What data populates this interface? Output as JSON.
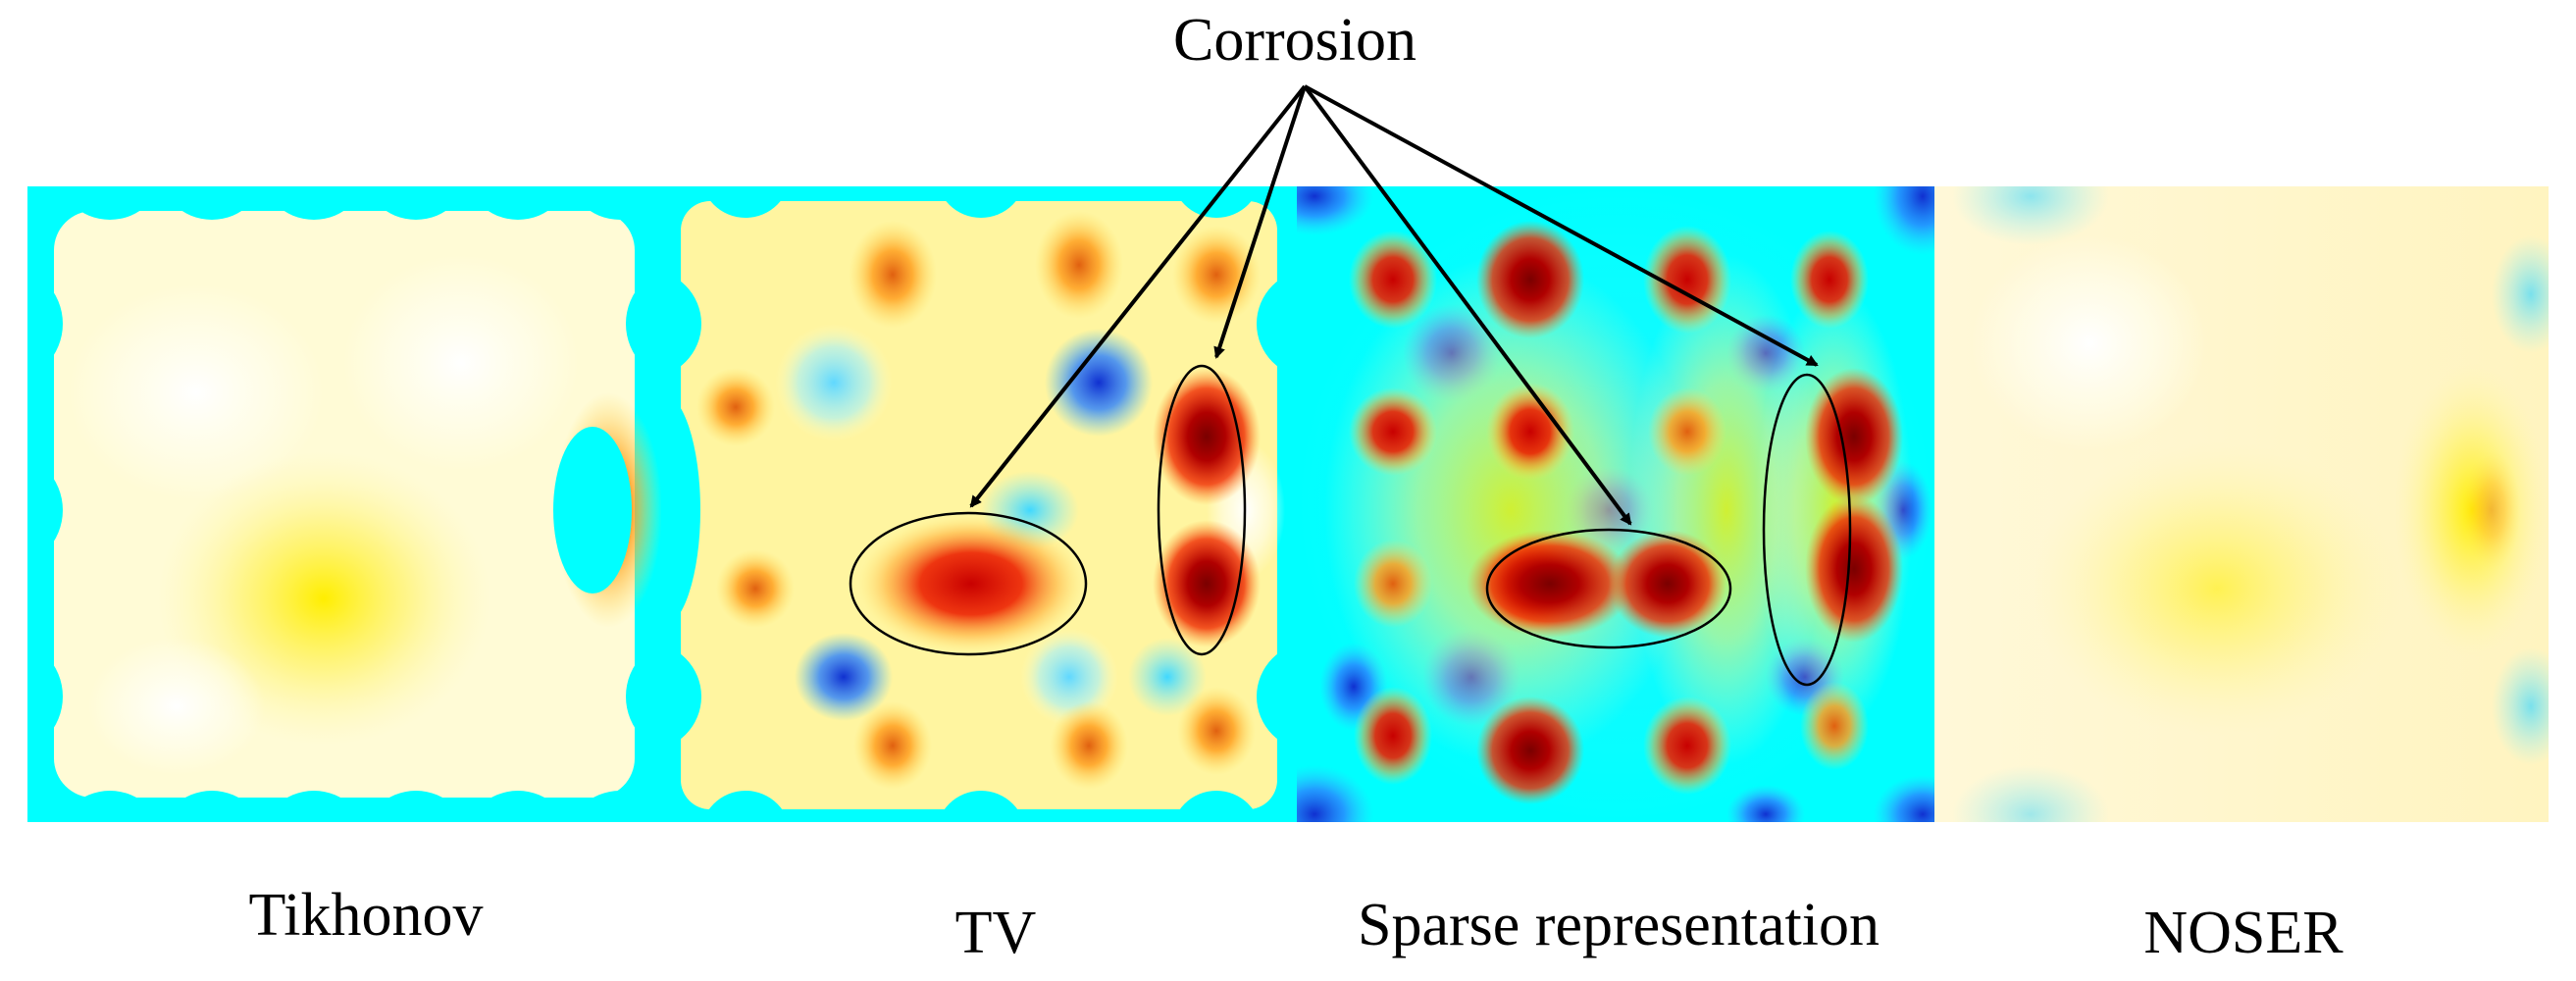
{
  "annotation": {
    "label": "Corrosion"
  },
  "panels": [
    {
      "id": "tikhonov",
      "caption": "Tikhonov"
    },
    {
      "id": "tv",
      "caption": "TV"
    },
    {
      "id": "sparse",
      "caption": "Sparse representation"
    },
    {
      "id": "noser",
      "caption": "NOSER"
    }
  ],
  "colors": {
    "background_cyan": "#00ffff",
    "low_blue": "#0000c0",
    "mid_yellow": "#ffff66",
    "high_red": "#e00000",
    "peak_darkred": "#800000"
  }
}
